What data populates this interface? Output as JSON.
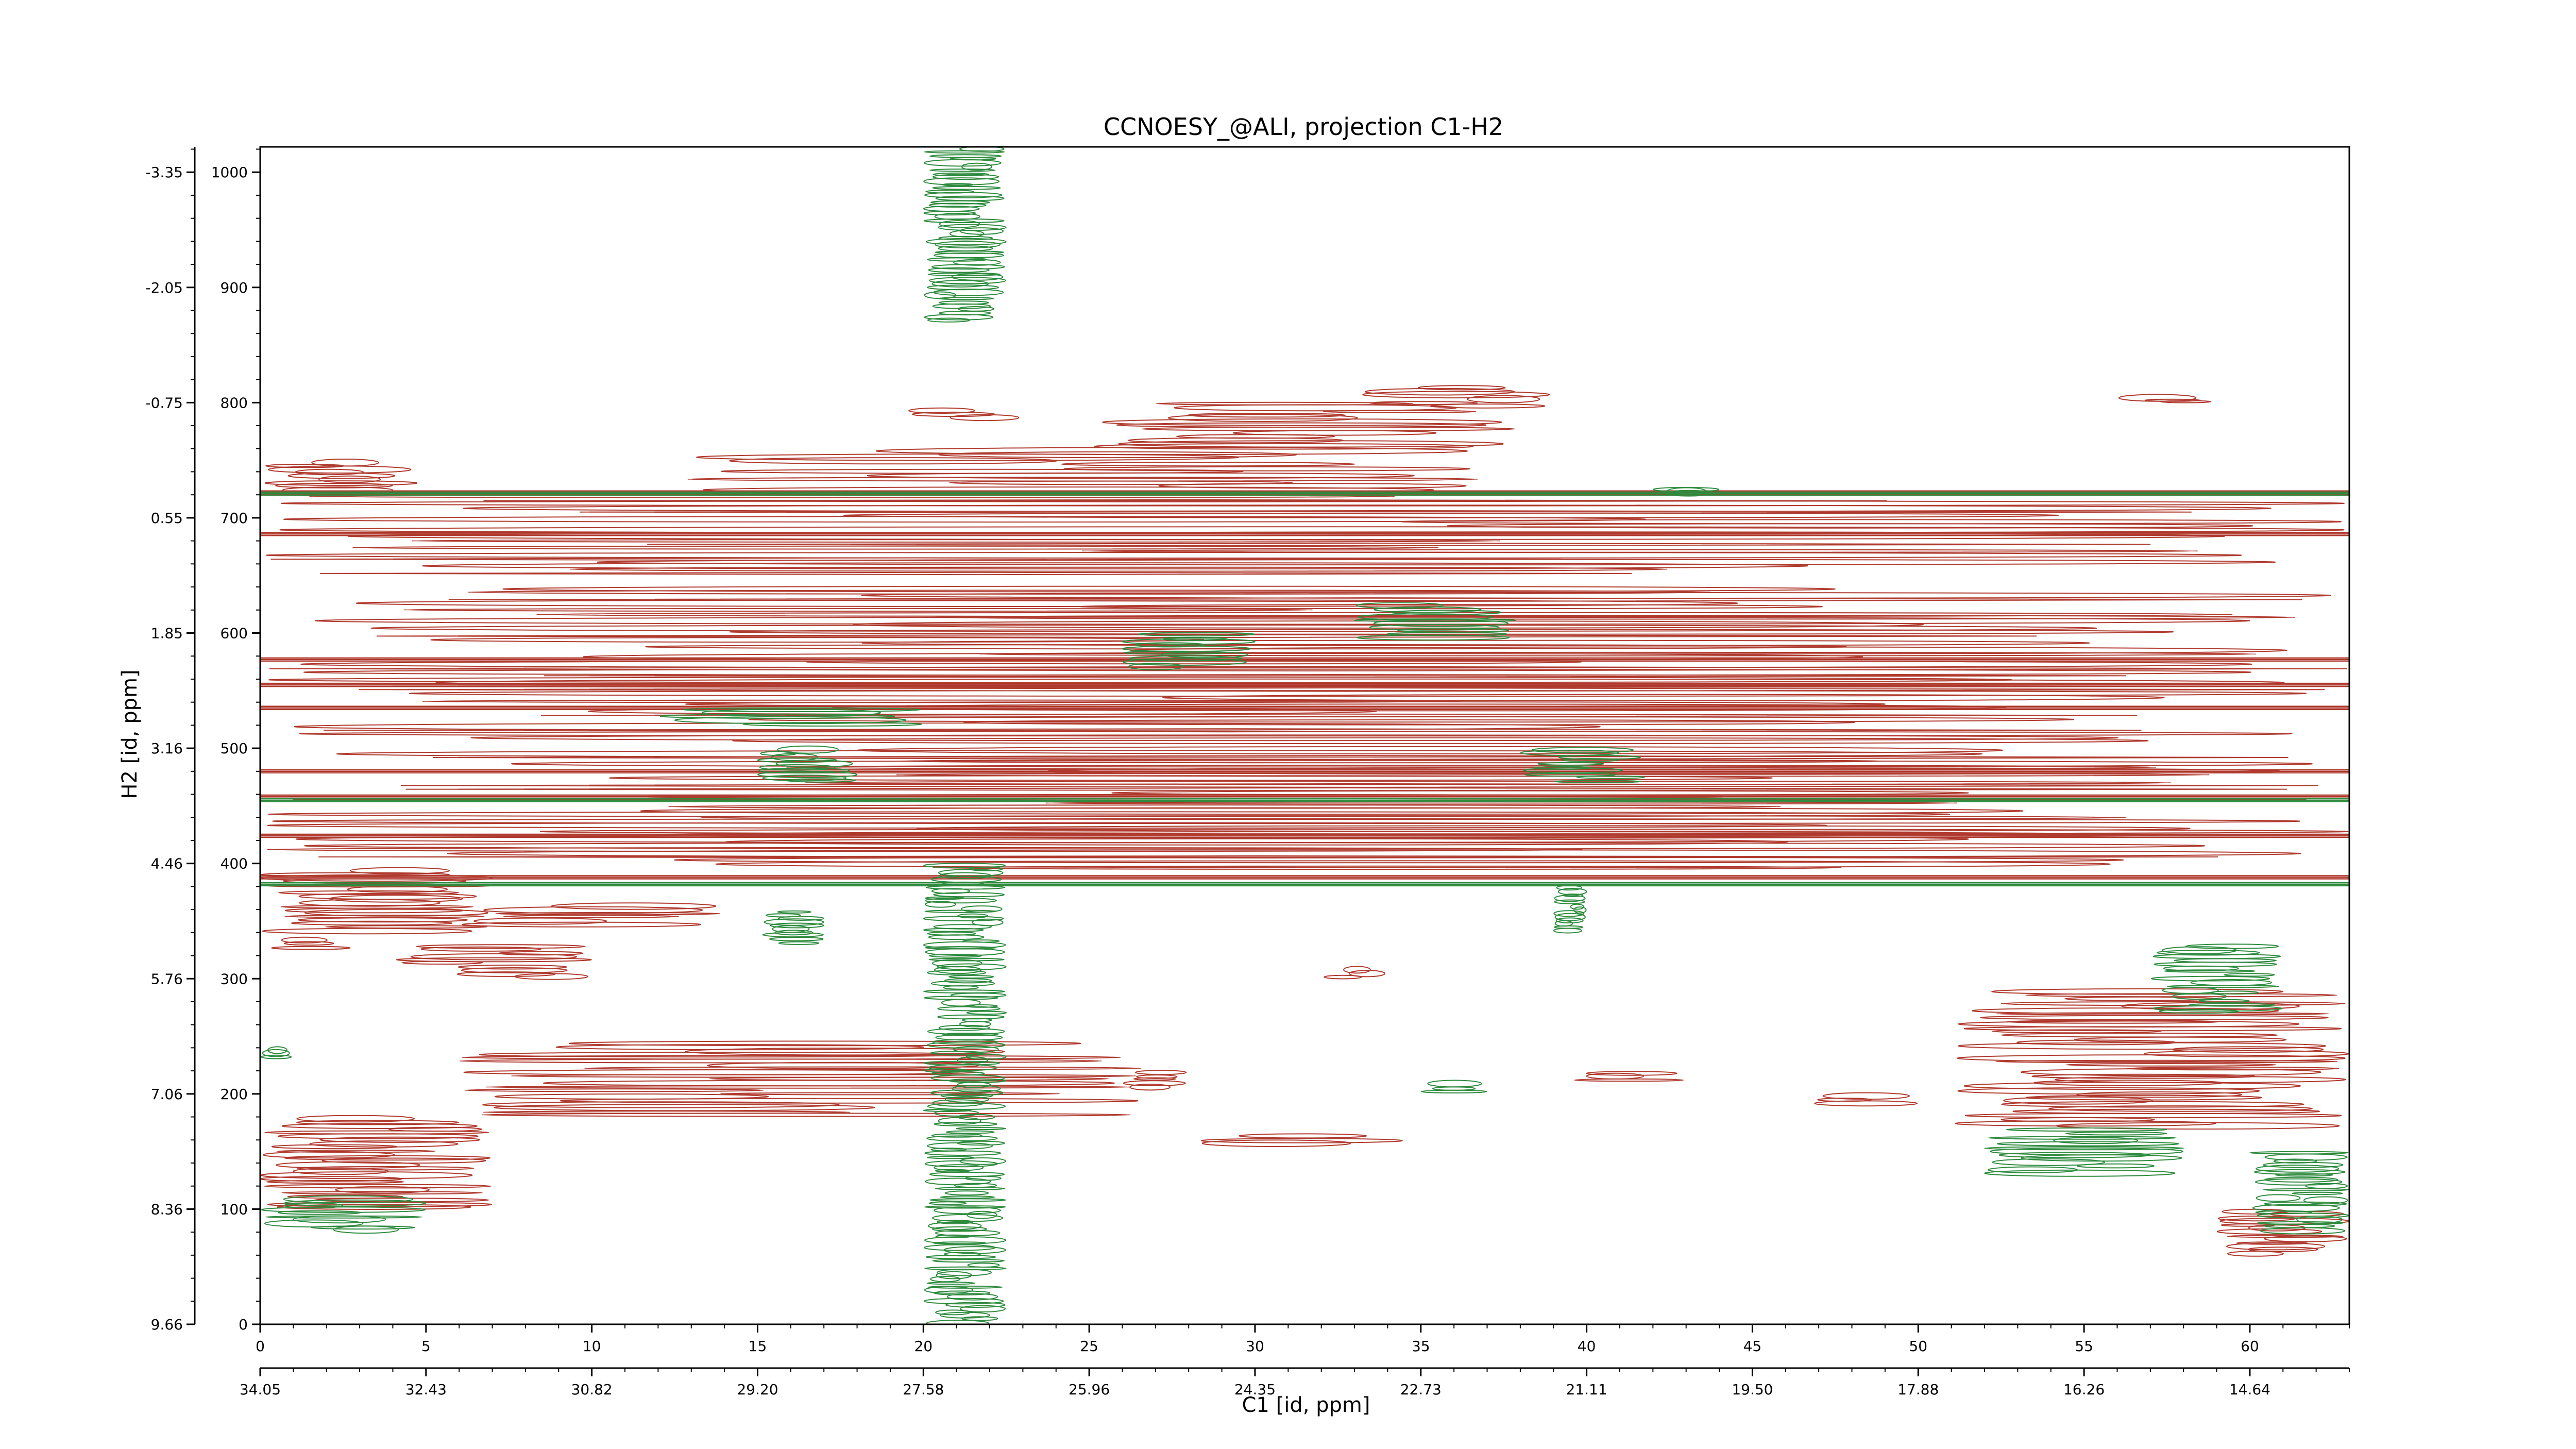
{
  "chart_data": {
    "type": "contour",
    "title": "CCNOESY_@ALI, projection C1-H2",
    "xlabel": "C1 [id, ppm]",
    "ylabel": "H2 [id, ppm]",
    "xlim": [
      0,
      63
    ],
    "ylim": [
      0,
      1022
    ],
    "x_index_ticks": [
      "0",
      "5",
      "10",
      "15",
      "20",
      "25",
      "30",
      "35",
      "40",
      "45",
      "50",
      "55",
      "60"
    ],
    "x_ppm_ticks": [
      "34.05",
      "32.43",
      "30.82",
      "29.20",
      "27.58",
      "25.96",
      "24.35",
      "22.73",
      "21.11",
      "19.50",
      "17.88",
      "16.26",
      "14.64"
    ],
    "y_index_ticks": [
      "0",
      "100",
      "200",
      "300",
      "400",
      "500",
      "600",
      "700",
      "800",
      "900",
      "1000"
    ],
    "y_ppm_ticks": [
      "9.66",
      "8.36",
      "7.06",
      "5.76",
      "4.46",
      "3.16",
      "1.85",
      "0.55",
      "-0.75",
      "-2.05",
      "-3.35"
    ],
    "colors": {
      "positive": "#b03a2e",
      "negative": "#2e8b3e"
    },
    "series": [
      {
        "sign": "positive",
        "bands": [
          [
            0,
            63,
            395,
            500
          ],
          [
            0,
            63,
            505,
            640
          ],
          [
            0,
            63,
            650,
            720
          ],
          [
            0,
            5,
            720,
            750
          ],
          [
            12,
            37,
            720,
            760
          ],
          [
            25,
            38,
            760,
            800
          ],
          [
            33,
            39,
            795,
            815
          ],
          [
            19,
            23,
            785,
            795
          ],
          [
            0,
            7,
            340,
            395
          ],
          [
            4,
            10,
            300,
            330
          ],
          [
            6,
            14,
            345,
            365
          ],
          [
            0,
            3,
            325,
            335
          ],
          [
            6,
            27,
            180,
            245
          ],
          [
            26,
            28,
            205,
            220
          ],
          [
            51,
            63,
            170,
            290
          ],
          [
            0,
            7,
            100,
            180
          ],
          [
            39,
            43,
            210,
            220
          ],
          [
            46,
            50,
            190,
            200
          ],
          [
            28,
            35,
            155,
            165
          ],
          [
            32,
            34,
            300,
            310
          ],
          [
            59,
            63,
            60,
            100
          ],
          [
            56,
            59,
            800,
            805
          ]
        ],
        "lines": [
          388,
          424,
          458,
          480,
          535,
          555,
          577,
          686,
          722
        ]
      },
      {
        "sign": "negative",
        "bands": [
          [
            20,
            22.5,
            0,
            400
          ],
          [
            20,
            22.5,
            870,
            1022
          ],
          [
            26,
            30,
            570,
            600
          ],
          [
            33,
            38,
            595,
            625
          ],
          [
            38,
            42,
            470,
            500
          ],
          [
            39,
            40,
            340,
            380
          ],
          [
            15,
            18,
            470,
            500
          ],
          [
            0,
            5,
            80,
            110
          ],
          [
            52,
            58,
            130,
            170
          ],
          [
            57,
            61,
            270,
            330
          ],
          [
            60,
            63,
            80,
            150
          ],
          [
            0,
            1,
            230,
            240
          ],
          [
            42,
            44,
            720,
            725
          ],
          [
            35,
            37,
            200,
            210
          ],
          [
            12,
            20,
            520,
            535
          ],
          [
            15,
            17,
            330,
            360
          ]
        ],
        "lines": [
          382,
          455,
          721
        ]
      }
    ]
  }
}
